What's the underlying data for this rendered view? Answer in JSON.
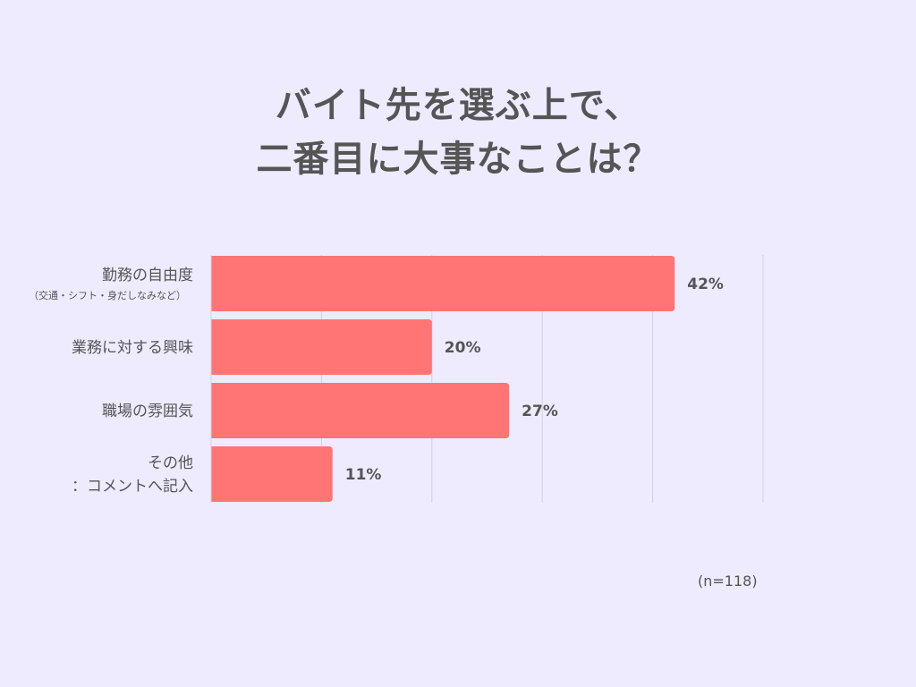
{
  "chart_data": {
    "type": "bar",
    "orientation": "horizontal",
    "title_lines": [
      "バイト先を選ぶ上で、",
      "二番目に大事なことは？"
    ],
    "categories": [
      {
        "label": "勤務の自由度",
        "sublabel": "（交通・シフト・身だしなみなど）"
      },
      {
        "label": "業務に対する興味",
        "sublabel": ""
      },
      {
        "label": "職場の雰囲気",
        "sublabel": ""
      },
      {
        "label": "その他\n：コメントへ記入",
        "sublabel": ""
      }
    ],
    "values": [
      42,
      20,
      27,
      11
    ],
    "value_labels": [
      "42%",
      "20%",
      "27%",
      "11%"
    ],
    "xlim": [
      0,
      50
    ],
    "grid": true,
    "bar_color": "#FF7575",
    "grid_color": "#D3D0E3",
    "axis_color": "#D3D0E3",
    "note": "(n=118)"
  }
}
